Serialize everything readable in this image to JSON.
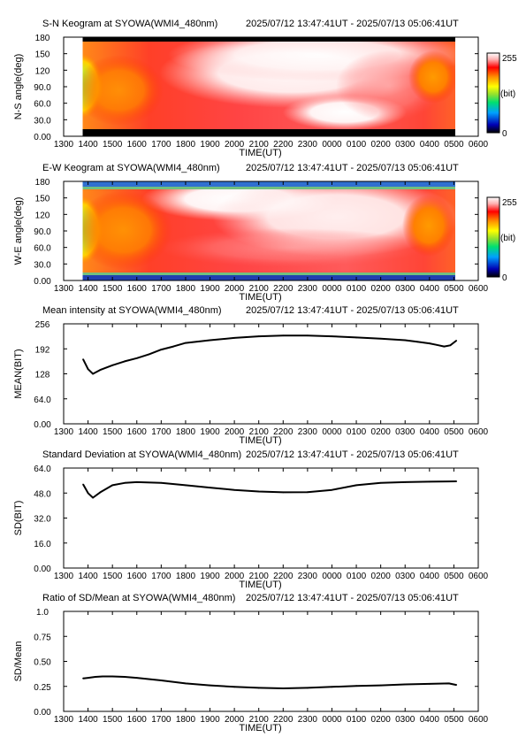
{
  "colors": {
    "background": "#ffffff",
    "axis": "#000000",
    "line": "#000000",
    "colorbar": [
      "#000000",
      "#0000b4",
      "#00a0ff",
      "#00e070",
      "#90e030",
      "#ffff00",
      "#ff9000",
      "#ff0000",
      "#ffb0b0",
      "#ffffff"
    ]
  },
  "chart_data": [
    {
      "type": "heatmap",
      "title": "S-N Keogram at SYOWA(WMI4_480nm)",
      "time_range": "2025/07/12 13:47:41UT - 2025/07/13 05:06:41UT",
      "xlabel": "TIME(UT)",
      "ylabel": "N-S angle(deg)",
      "xticks": [
        "1300",
        "1400",
        "1500",
        "1600",
        "1700",
        "1800",
        "1900",
        "2000",
        "2100",
        "2200",
        "2300",
        "0000",
        "0100",
        "0200",
        "0300",
        "0400",
        "0500",
        "0600"
      ],
      "yticks": [
        "0.00",
        "30.0",
        "60.0",
        "90.0",
        "120",
        "150",
        "180"
      ],
      "ylim": [
        0,
        180
      ],
      "colorbar": {
        "min": "0",
        "max": "255",
        "unit": "(bit)"
      },
      "description": "S-N"
    },
    {
      "type": "heatmap",
      "title": "E-W Keogram at SYOWA(WMI4_480nm)",
      "time_range": "2025/07/12 13:47:41UT - 2025/07/13 05:06:41UT",
      "xlabel": "TIME(UT)",
      "ylabel": "W-E angle(deg)",
      "xticks": [
        "1300",
        "1400",
        "1500",
        "1600",
        "1700",
        "1800",
        "1900",
        "2000",
        "2100",
        "2200",
        "2300",
        "0000",
        "0100",
        "0200",
        "0300",
        "0400",
        "0500",
        "0600"
      ],
      "yticks": [
        "0.00",
        "30.0",
        "60.0",
        "90.0",
        "120",
        "150",
        "180"
      ],
      "ylim": [
        0,
        180
      ],
      "colorbar": {
        "min": "0",
        "max": "255",
        "unit": "(bit)"
      },
      "description": "E-W"
    },
    {
      "type": "line",
      "title": "Mean intensity at SYOWA(WMI4_480nm)",
      "time_range": "2025/07/12 13:47:41UT - 2025/07/13 05:06:41UT",
      "xlabel": "TIME(UT)",
      "ylabel": "MEAN(BIT)",
      "xticks": [
        "1300",
        "1400",
        "1500",
        "1600",
        "1700",
        "1800",
        "1900",
        "2000",
        "2100",
        "2200",
        "2300",
        "0000",
        "0100",
        "0200",
        "0300",
        "0400",
        "0500",
        "0600"
      ],
      "yticks": [
        "0.00",
        "64.0",
        "128",
        "192",
        "256"
      ],
      "ylim": [
        0,
        256
      ],
      "x": [
        13.8,
        14.0,
        14.2,
        14.5,
        15.0,
        15.5,
        16.0,
        16.5,
        17.0,
        17.5,
        18.0,
        19.0,
        20.0,
        21.0,
        22.0,
        23.0,
        24.0,
        25.0,
        26.0,
        27.0,
        27.5,
        28.0,
        28.3,
        28.6,
        28.85,
        29.1
      ],
      "values": [
        165,
        140,
        128,
        138,
        150,
        160,
        168,
        178,
        190,
        198,
        207,
        214,
        220,
        224,
        226,
        226,
        224,
        221,
        218,
        214,
        210,
        206,
        202,
        198,
        201,
        213
      ]
    },
    {
      "type": "line",
      "title": "Standard Deviation at SYOWA(WMI4_480nm)",
      "time_range": "2025/07/12 13:47:41UT - 2025/07/13 05:06:41UT",
      "xlabel": "TIME(UT)",
      "ylabel": "SD(BIT)",
      "xticks": [
        "1300",
        "1400",
        "1500",
        "1600",
        "1700",
        "1800",
        "1900",
        "2000",
        "2100",
        "2200",
        "2300",
        "0000",
        "0100",
        "0200",
        "0300",
        "0400",
        "0500",
        "0600"
      ],
      "yticks": [
        "0.00",
        "16.0",
        "32.0",
        "48.0",
        "64.0"
      ],
      "ylim": [
        0,
        64
      ],
      "x": [
        13.8,
        14.0,
        14.2,
        14.5,
        15.0,
        15.5,
        16.0,
        17.0,
        18.0,
        19.0,
        20.0,
        21.0,
        22.0,
        23.0,
        24.0,
        25.0,
        26.0,
        27.0,
        28.0,
        29.1
      ],
      "values": [
        53.5,
        48.0,
        45.0,
        48.5,
        53.0,
        54.5,
        55.0,
        54.5,
        53.0,
        51.5,
        50.0,
        49.0,
        48.5,
        48.6,
        50.0,
        53.0,
        54.5,
        55.0,
        55.3,
        55.5
      ]
    },
    {
      "type": "line",
      "title": "Ratio of SD/Mean at SYOWA(WMI4_480nm)",
      "time_range": "2025/07/12 13:47:41UT - 2025/07/13 05:06:41UT",
      "xlabel": "TIME(UT)",
      "ylabel": "SD/Mean",
      "xticks": [
        "1300",
        "1400",
        "1500",
        "1600",
        "1700",
        "1800",
        "1900",
        "2000",
        "2100",
        "2200",
        "2300",
        "0000",
        "0100",
        "0200",
        "0300",
        "0400",
        "0500",
        "0600"
      ],
      "yticks": [
        "0.00",
        "0.25",
        "0.50",
        "0.75",
        "1.0"
      ],
      "ylim": [
        0,
        1
      ],
      "x": [
        13.8,
        14.0,
        14.3,
        14.6,
        15.0,
        15.5,
        16.0,
        17.0,
        18.0,
        19.0,
        20.0,
        21.0,
        22.0,
        23.0,
        24.0,
        25.0,
        26.0,
        27.0,
        28.0,
        28.8,
        29.1
      ],
      "values": [
        0.33,
        0.335,
        0.345,
        0.35,
        0.35,
        0.345,
        0.335,
        0.31,
        0.28,
        0.26,
        0.245,
        0.235,
        0.23,
        0.235,
        0.245,
        0.255,
        0.26,
        0.27,
        0.275,
        0.28,
        0.265
      ]
    }
  ]
}
